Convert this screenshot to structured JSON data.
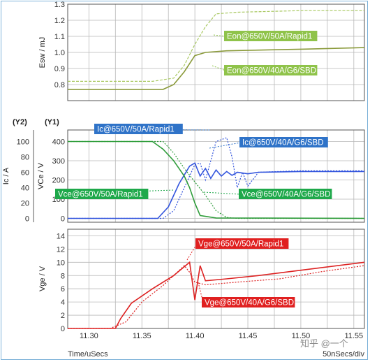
{
  "colors": {
    "esw_solid": "#8a9a3a",
    "esw_dashed": "#a8c860",
    "esw_label_bg": "#8fc34a",
    "ic_color": "#3355dd",
    "ic_label_bg": "#2f73c8",
    "vce_color": "#2e9c3a",
    "vce_label_bg": "#1ea84a",
    "vge_color": "#dd2222",
    "vge_label_bg": "#e02020",
    "grid": "#b8b8b8",
    "plot_border": "#555555"
  },
  "footer": {
    "time_label": "Time/uSecs",
    "scale_label": "50nSecs/div",
    "watermark": "知乎 @一个"
  },
  "chart_data": [
    {
      "type": "line",
      "ylabel": "Esw / mJ",
      "ylim": [
        0.7,
        1.3
      ],
      "yticks": [
        "1.3",
        "1.2",
        "1.1",
        "1.0",
        "0.9",
        "0.8"
      ],
      "grid": true,
      "series": [
        {
          "name": "Eon@650V/50A/Rapid1",
          "style": "dashed",
          "x": [
            11.28,
            11.36,
            11.38,
            11.39,
            11.4,
            11.41,
            11.42,
            11.44,
            11.5,
            11.56
          ],
          "y": [
            0.82,
            0.82,
            0.84,
            0.92,
            1.05,
            1.16,
            1.24,
            1.25,
            1.26,
            1.26
          ]
        },
        {
          "name": "Eon@650V/40A/G6/SBD",
          "style": "solid",
          "x": [
            11.28,
            11.37,
            11.38,
            11.39,
            11.4,
            11.41,
            11.43,
            11.5,
            11.56
          ],
          "y": [
            0.77,
            0.77,
            0.8,
            0.88,
            0.98,
            1.0,
            1.01,
            1.02,
            1.03
          ]
        }
      ]
    },
    {
      "type": "line",
      "ylabel": "VCe / V",
      "y2label": "Ic / A",
      "y_axis_tag": "(Y1)",
      "y2_axis_tag": "(Y2)",
      "ylim": [
        -20,
        460
      ],
      "yticks": [
        "400",
        "300",
        "200",
        "100",
        "0"
      ],
      "y2lim": [
        -5,
        115
      ],
      "y2ticks": [
        "100",
        "80",
        "60",
        "40",
        "20",
        "0"
      ],
      "grid": true,
      "series": [
        {
          "name": "Ic@650V/50A/Rapid1",
          "axis": "y2",
          "style": "dotted",
          "x": [
            11.28,
            11.37,
            11.38,
            11.39,
            11.4,
            11.405,
            11.41,
            11.42,
            11.43,
            11.435,
            11.44,
            11.445,
            11.45,
            11.46,
            11.5,
            11.56
          ],
          "y": [
            0,
            0,
            10,
            40,
            70,
            72,
            50,
            100,
            105,
            80,
            40,
            60,
            42,
            60,
            62,
            62
          ]
        },
        {
          "name": "Ic@650V/40A/G6/SBD",
          "axis": "y2",
          "style": "solid",
          "x": [
            11.28,
            11.365,
            11.375,
            11.385,
            11.395,
            11.4,
            11.405,
            11.41,
            11.415,
            11.42,
            11.425,
            11.43,
            11.435,
            11.44,
            11.45,
            11.46,
            11.5,
            11.56
          ],
          "y": [
            0,
            0,
            15,
            45,
            68,
            72,
            55,
            65,
            52,
            63,
            55,
            61,
            56,
            60,
            58,
            60,
            61,
            61
          ]
        },
        {
          "name": "Vce@650V/50A/Rapid1",
          "axis": "y1",
          "style": "dotted",
          "x": [
            11.28,
            11.37,
            11.38,
            11.39,
            11.4,
            11.41,
            11.42,
            11.43,
            11.44,
            11.56
          ],
          "y": [
            400,
            400,
            340,
            260,
            190,
            120,
            40,
            5,
            0,
            0
          ]
        },
        {
          "name": "Vce@650V/40A/G6/SBD",
          "axis": "y1",
          "style": "solid",
          "x": [
            11.28,
            11.36,
            11.37,
            11.38,
            11.39,
            11.395,
            11.4,
            11.405,
            11.42,
            11.56
          ],
          "y": [
            400,
            400,
            360,
            300,
            220,
            160,
            80,
            15,
            2,
            0
          ]
        }
      ]
    },
    {
      "type": "line",
      "ylabel": "Vge / V",
      "xlabel": "Time/uSecs",
      "ylim": [
        0,
        15
      ],
      "yticks": [
        "14",
        "12",
        "10",
        "8",
        "6",
        "4",
        "2",
        "0"
      ],
      "x": [
        11.28,
        11.56
      ],
      "xticks": [
        "11.30",
        "11.35",
        "11.40",
        "11.45",
        "11.50",
        "11.55"
      ],
      "grid": true,
      "series": [
        {
          "name": "Vge@650V/50A/Rapid1",
          "style": "dotted",
          "x": [
            11.28,
            11.32,
            11.335,
            11.35,
            11.37,
            11.39,
            11.395,
            11.4,
            11.41,
            11.44,
            11.48,
            11.52,
            11.56
          ],
          "y": [
            0,
            0,
            1.0,
            4.0,
            6.5,
            9.5,
            8.5,
            7.0,
            6.6,
            7.0,
            7.5,
            8.6,
            9.5
          ]
        },
        {
          "name": "Vge@650V/40A/G6/SBD",
          "style": "solid",
          "x": [
            11.28,
            11.325,
            11.33,
            11.34,
            11.36,
            11.38,
            11.395,
            11.4,
            11.405,
            11.41,
            11.43,
            11.46,
            11.5,
            11.56
          ],
          "y": [
            0,
            0,
            1.5,
            3.8,
            6.0,
            8.0,
            10.0,
            4.3,
            9.5,
            7.2,
            7.5,
            8.0,
            8.8,
            10.0
          ]
        }
      ]
    }
  ]
}
